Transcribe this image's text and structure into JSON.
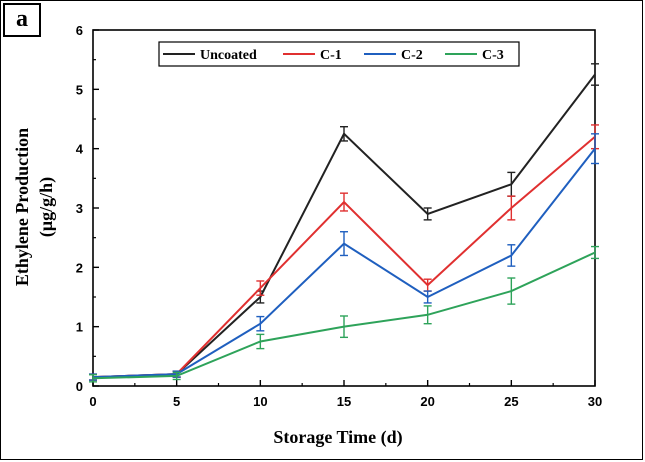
{
  "panel_label": "a",
  "chart_data": {
    "type": "line",
    "title": "",
    "xlabel": "Storage Time (d)",
    "ylabel_line1": "Ethylene Production",
    "ylabel_line2": "(μg/g/h)",
    "x": [
      0,
      5,
      10,
      15,
      20,
      25,
      30
    ],
    "xlim": [
      0,
      30
    ],
    "ylim": [
      0,
      6
    ],
    "xticks": [
      "0",
      "5",
      "10",
      "15",
      "20",
      "25",
      "30"
    ],
    "yticks": [
      "0",
      "1",
      "2",
      "3",
      "4",
      "5",
      "6"
    ],
    "grid": false,
    "legend_position": "top-center",
    "series": [
      {
        "name": "Uncoated",
        "color": "#222222",
        "values": [
          0.15,
          0.2,
          1.5,
          4.25,
          2.9,
          3.4,
          5.25
        ],
        "errors": [
          0.05,
          0.05,
          0.1,
          0.12,
          0.1,
          0.2,
          0.18
        ]
      },
      {
        "name": "C-1",
        "color": "#e03030",
        "values": [
          0.15,
          0.2,
          1.65,
          3.1,
          1.7,
          3.0,
          4.2
        ],
        "errors": [
          0.05,
          0.05,
          0.12,
          0.15,
          0.1,
          0.2,
          0.2
        ]
      },
      {
        "name": "C-2",
        "color": "#1f5fbf",
        "values": [
          0.15,
          0.2,
          1.05,
          2.4,
          1.5,
          2.2,
          4.0
        ],
        "errors": [
          0.05,
          0.05,
          0.12,
          0.2,
          0.1,
          0.18,
          0.25
        ]
      },
      {
        "name": "C-3",
        "color": "#2ea35a",
        "values": [
          0.13,
          0.17,
          0.75,
          1.0,
          1.2,
          1.6,
          2.25
        ],
        "errors": [
          0.06,
          0.06,
          0.12,
          0.18,
          0.15,
          0.22,
          0.1
        ]
      }
    ]
  }
}
